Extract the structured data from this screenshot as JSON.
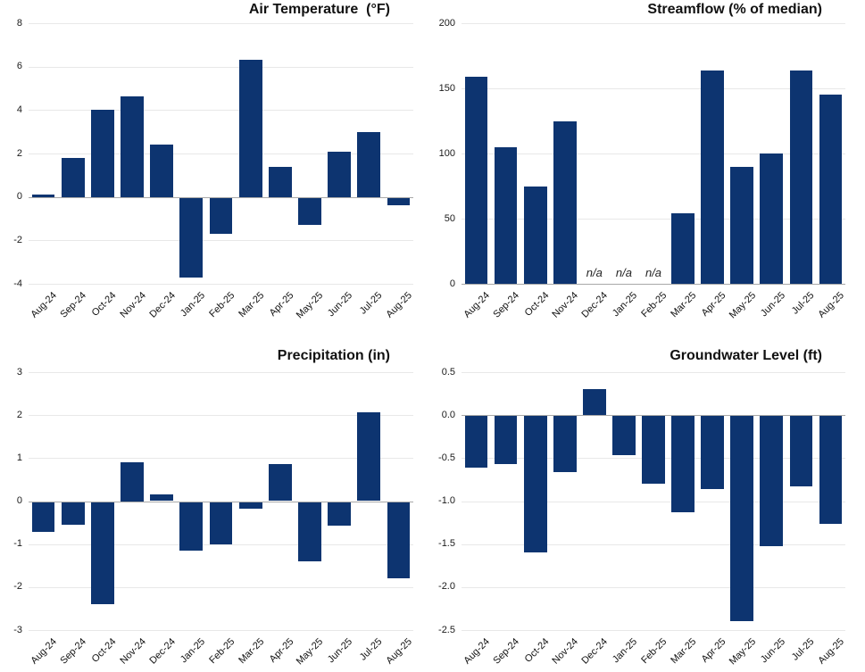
{
  "figure": {
    "background": "#ffffff",
    "layout": "2x2-grid",
    "legend": "none"
  },
  "colors": {
    "bar": "#0d3470",
    "gridline": "#e8e8e8",
    "zero_line": "#a8a8a8",
    "title_text": "#111111",
    "tick_text": "#1a1a1a"
  },
  "chart_data": [
    {
      "type": "bar",
      "title": "Air Temperature  (°F)",
      "categories": [
        "Aug-24",
        "Sep-24",
        "Oct-24",
        "Nov-24",
        "Dec-24",
        "Jan-25",
        "Feb-25",
        "Mar-25",
        "Apr-25",
        "May-25",
        "Jun-25",
        "Jul-25",
        "Aug-25"
      ],
      "values": [
        0.1,
        1.8,
        4.0,
        4.65,
        2.4,
        -3.7,
        -1.7,
        6.3,
        1.4,
        -1.3,
        2.1,
        3.0,
        -0.4
      ],
      "ylim": [
        -4,
        8
      ],
      "ytick_values": [
        8,
        6,
        4,
        2,
        0,
        -2,
        -4
      ],
      "ytick_labels": [
        "8",
        "6",
        "4",
        "2",
        "0",
        "-2",
        "-4"
      ],
      "grid": true,
      "xlabel": "",
      "ylabel": ""
    },
    {
      "type": "bar",
      "title": "Streamflow (% of median)",
      "categories": [
        "Aug-24",
        "Sep-24",
        "Oct-24",
        "Nov-24",
        "Dec-24",
        "Jan-25",
        "Feb-25",
        "Mar-25",
        "Apr-25",
        "May-25",
        "Jun-25",
        "Jul-25",
        "Aug-25"
      ],
      "values": [
        159,
        105,
        75,
        125,
        null,
        null,
        null,
        54,
        164,
        90,
        100,
        164,
        145
      ],
      "na_label": "n/a",
      "na_months": [
        "Dec-24",
        "Jan-25",
        "Feb-25"
      ],
      "ylim": [
        0,
        200
      ],
      "ytick_values": [
        200,
        150,
        100,
        50,
        0
      ],
      "ytick_labels": [
        "200",
        "150",
        "100",
        "50",
        "0"
      ],
      "grid": true,
      "xlabel": "",
      "ylabel": ""
    },
    {
      "type": "bar",
      "title": "Precipitation (in)",
      "categories": [
        "Aug-24",
        "Sep-24",
        "Oct-24",
        "Nov-24",
        "Dec-24",
        "Jan-25",
        "Feb-25",
        "Mar-25",
        "Apr-25",
        "May-25",
        "Jun-25",
        "Jul-25",
        "Aug-25"
      ],
      "values": [
        -0.72,
        -0.55,
        -2.4,
        0.9,
        0.15,
        -1.15,
        -1.0,
        -0.17,
        0.87,
        -1.4,
        -0.57,
        2.06,
        -1.8
      ],
      "ylim": [
        -3,
        3
      ],
      "ytick_values": [
        3,
        2,
        1,
        0,
        -1,
        -2,
        -3
      ],
      "ytick_labels": [
        "3",
        "2",
        "1",
        "0",
        "-1",
        "-2",
        "-3"
      ],
      "grid": true,
      "xlabel": "",
      "ylabel": ""
    },
    {
      "type": "bar",
      "title": "Groundwater Level (ft)",
      "categories": [
        "Aug-24",
        "Sep-24",
        "Oct-24",
        "Nov-24",
        "Dec-24",
        "Jan-25",
        "Feb-25",
        "Mar-25",
        "Apr-25",
        "May-25",
        "Jun-25",
        "Jul-25",
        "Aug-25"
      ],
      "values": [
        -0.61,
        -0.57,
        -1.6,
        -0.66,
        0.3,
        -0.47,
        -0.8,
        -1.13,
        -0.86,
        -2.4,
        -1.52,
        -0.83,
        -1.27
      ],
      "ylim": [
        -2.5,
        0.5
      ],
      "ytick_values": [
        0.5,
        0.0,
        -0.5,
        -1.0,
        -1.5,
        -2.0,
        -2.5
      ],
      "ytick_labels": [
        "0.5",
        "0.0",
        "-0.5",
        "-1.0",
        "-1.5",
        "-2.0",
        "-2.5"
      ],
      "grid": true,
      "xlabel": "",
      "ylabel": ""
    }
  ]
}
